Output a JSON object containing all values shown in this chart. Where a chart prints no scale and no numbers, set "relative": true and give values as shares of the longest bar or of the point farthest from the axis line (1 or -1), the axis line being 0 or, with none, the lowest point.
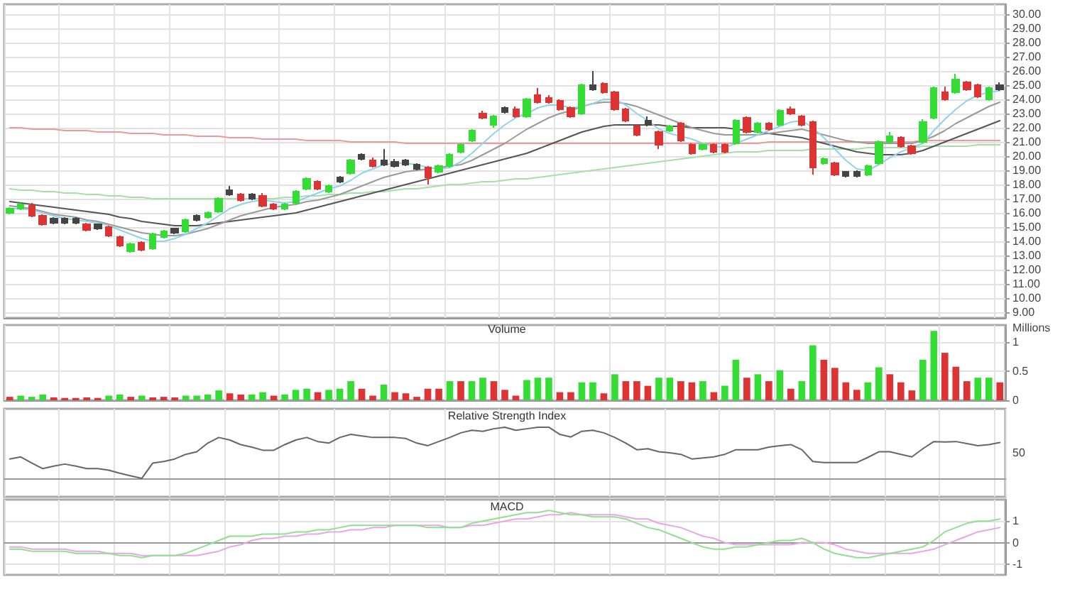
{
  "chart_data": [
    {
      "type": "candlestick",
      "categories": [
        null,
        null,
        null,
        null,
        null,
        null,
        null,
        null,
        null,
        null,
        null,
        null,
        null,
        null,
        null,
        null,
        null,
        null,
        null,
        null,
        null,
        null,
        null,
        null,
        null,
        null,
        null,
        null,
        null,
        null,
        null,
        null,
        null,
        null,
        null,
        null,
        null,
        null,
        null,
        null,
        null,
        null,
        null,
        null,
        null,
        null,
        null,
        null,
        null,
        null,
        null,
        null,
        null,
        null,
        null,
        null,
        null,
        null,
        null,
        null,
        null,
        null,
        null,
        null,
        null,
        null,
        null,
        null,
        null,
        null,
        null,
        null,
        null,
        null,
        null,
        null,
        null,
        null,
        null,
        null,
        null,
        null,
        null,
        null,
        null,
        null,
        null,
        null,
        null,
        null,
        null
      ],
      "ohlc": [
        [
          16.0,
          16.4,
          15.9,
          16.3
        ],
        [
          16.3,
          16.7,
          16.2,
          16.6
        ],
        [
          16.5,
          16.7,
          15.7,
          15.8
        ],
        [
          15.8,
          15.9,
          15.1,
          15.2
        ],
        [
          15.6,
          15.7,
          15.2,
          15.3
        ],
        [
          15.3,
          15.7,
          15.2,
          15.6
        ],
        [
          15.6,
          15.7,
          15.2,
          15.3
        ],
        [
          15.2,
          15.3,
          14.7,
          14.8
        ],
        [
          14.9,
          15.2,
          14.8,
          15.2
        ],
        [
          15.0,
          15.1,
          14.3,
          14.4
        ],
        [
          14.3,
          14.4,
          13.6,
          13.7
        ],
        [
          13.3,
          13.9,
          13.2,
          13.8
        ],
        [
          13.9,
          14.0,
          13.3,
          13.4
        ],
        [
          13.5,
          14.6,
          13.4,
          14.5
        ],
        [
          14.3,
          14.8,
          14.2,
          14.7
        ],
        [
          14.6,
          14.9,
          14.5,
          14.9
        ],
        [
          14.7,
          15.6,
          14.6,
          15.5
        ],
        [
          15.5,
          15.9,
          15.4,
          15.8
        ],
        [
          15.7,
          16.1,
          15.6,
          16.0
        ],
        [
          16.1,
          17.1,
          16.0,
          17.0
        ],
        [
          17.3,
          17.9,
          17.2,
          17.6
        ],
        [
          17.3,
          17.4,
          16.8,
          16.9
        ],
        [
          17.0,
          17.4,
          16.9,
          17.3
        ],
        [
          17.2,
          17.4,
          16.4,
          16.5
        ],
        [
          16.6,
          16.7,
          16.2,
          16.3
        ],
        [
          16.3,
          16.7,
          16.2,
          16.6
        ],
        [
          16.7,
          17.6,
          16.6,
          17.5
        ],
        [
          17.7,
          18.5,
          17.6,
          18.4
        ],
        [
          18.2,
          18.3,
          17.6,
          17.7
        ],
        [
          17.5,
          18.0,
          17.4,
          17.9
        ],
        [
          18.2,
          18.6,
          18.1,
          18.5
        ],
        [
          18.8,
          19.8,
          18.7,
          19.7
        ],
        [
          19.8,
          20.2,
          19.7,
          20.1
        ],
        [
          19.7,
          19.9,
          19.2,
          19.3
        ],
        [
          19.4,
          20.5,
          19.3,
          19.7
        ],
        [
          19.6,
          19.8,
          19.2,
          19.3
        ],
        [
          19.4,
          19.8,
          19.3,
          19.7
        ],
        [
          19.4,
          19.5,
          19.0,
          19.1
        ],
        [
          19.2,
          19.3,
          18.0,
          18.5
        ],
        [
          18.9,
          19.4,
          18.8,
          19.3
        ],
        [
          19.3,
          20.2,
          19.2,
          20.1
        ],
        [
          20.3,
          20.9,
          20.2,
          20.8
        ],
        [
          21.1,
          21.9,
          21.0,
          21.8
        ],
        [
          23.0,
          23.2,
          22.6,
          22.7
        ],
        [
          22.2,
          22.9,
          22.0,
          22.8
        ],
        [
          23.1,
          23.5,
          23.0,
          23.4
        ],
        [
          23.3,
          23.5,
          22.7,
          22.8
        ],
        [
          22.8,
          24.1,
          22.7,
          24.0
        ],
        [
          24.3,
          24.8,
          23.7,
          23.8
        ],
        [
          24.1,
          24.3,
          23.7,
          23.8
        ],
        [
          23.9,
          24.0,
          23.2,
          23.3
        ],
        [
          23.4,
          23.5,
          22.7,
          22.8
        ],
        [
          23.0,
          25.1,
          22.9,
          25.0
        ],
        [
          24.7,
          26.0,
          24.6,
          25.0
        ],
        [
          25.1,
          25.2,
          24.4,
          24.5
        ],
        [
          24.5,
          24.6,
          23.2,
          23.3
        ],
        [
          23.3,
          23.4,
          22.4,
          22.5
        ],
        [
          22.1,
          22.2,
          21.4,
          21.5
        ],
        [
          22.2,
          22.8,
          22.1,
          22.5
        ],
        [
          21.7,
          21.8,
          20.5,
          20.8
        ],
        [
          21.8,
          22.2,
          21.7,
          22.1
        ],
        [
          22.3,
          22.4,
          21.0,
          21.1
        ],
        [
          20.8,
          20.9,
          20.1,
          20.2
        ],
        [
          20.5,
          20.9,
          20.4,
          20.8
        ],
        [
          20.8,
          20.9,
          20.2,
          20.3
        ],
        [
          20.8,
          20.9,
          20.2,
          20.3
        ],
        [
          20.9,
          22.6,
          20.8,
          22.5
        ],
        [
          22.7,
          22.8,
          21.6,
          21.7
        ],
        [
          21.7,
          22.4,
          21.6,
          22.3
        ],
        [
          22.3,
          22.4,
          21.8,
          21.9
        ],
        [
          22.2,
          23.3,
          22.1,
          23.2
        ],
        [
          23.3,
          23.5,
          22.9,
          23.0
        ],
        [
          22.8,
          22.9,
          22.1,
          22.2
        ],
        [
          22.4,
          22.5,
          18.7,
          19.2
        ],
        [
          19.5,
          19.9,
          19.4,
          19.8
        ],
        [
          19.5,
          19.6,
          18.6,
          18.7
        ],
        [
          18.6,
          18.9,
          18.5,
          18.9
        ],
        [
          18.9,
          19.0,
          18.5,
          18.6
        ],
        [
          18.7,
          19.4,
          18.6,
          19.3
        ],
        [
          19.5,
          21.1,
          19.4,
          21.0
        ],
        [
          21.0,
          21.7,
          20.9,
          21.4
        ],
        [
          21.3,
          21.4,
          20.6,
          20.7
        ],
        [
          20.7,
          20.8,
          20.1,
          20.2
        ],
        [
          21.0,
          22.6,
          20.9,
          22.4
        ],
        [
          22.7,
          24.9,
          22.6,
          24.8
        ],
        [
          24.5,
          24.9,
          23.9,
          24.0
        ],
        [
          24.5,
          25.8,
          24.4,
          25.4
        ],
        [
          25.2,
          25.3,
          24.6,
          24.7
        ],
        [
          25.0,
          25.1,
          24.1,
          24.2
        ],
        [
          24.0,
          24.9,
          23.9,
          24.8
        ],
        [
          24.7,
          25.2,
          24.6,
          25.0
        ]
      ],
      "colors": [
        "#33dd33",
        "#33dd33",
        "#dd3333",
        "#dd3333",
        "#444444",
        "#444444",
        "#444444",
        "#dd3333",
        "#444444",
        "#dd3333",
        "#dd3333",
        "#33dd33",
        "#dd3333",
        "#33dd33",
        "#33dd33",
        "#444444",
        "#33dd33",
        "#444444",
        "#33dd33",
        "#33dd33",
        "#444444",
        "#dd3333",
        "#444444",
        "#dd3333",
        "#dd3333",
        "#33dd33",
        "#33dd33",
        "#33dd33",
        "#dd3333",
        "#33dd33",
        "#444444",
        "#33dd33",
        "#444444",
        "#dd3333",
        "#444444",
        "#444444",
        "#444444",
        "#444444",
        "#dd3333",
        "#33dd33",
        "#33dd33",
        "#33dd33",
        "#33dd33",
        "#dd3333",
        "#33dd33",
        "#444444",
        "#dd3333",
        "#33dd33",
        "#dd3333",
        "#dd3333",
        "#dd3333",
        "#dd3333",
        "#33dd33",
        "#444444",
        "#dd3333",
        "#dd3333",
        "#dd3333",
        "#dd3333",
        "#444444",
        "#dd3333",
        "#33dd33",
        "#dd3333",
        "#dd3333",
        "#33dd33",
        "#dd3333",
        "#dd3333",
        "#33dd33",
        "#dd3333",
        "#33dd33",
        "#dd3333",
        "#33dd33",
        "#dd3333",
        "#dd3333",
        "#dd3333",
        "#33dd33",
        "#dd3333",
        "#444444",
        "#444444",
        "#33dd33",
        "#33dd33",
        "#33dd33",
        "#dd3333",
        "#dd3333",
        "#33dd33",
        "#33dd33",
        "#dd3333",
        "#33dd33",
        "#dd3333",
        "#dd3333",
        "#33dd33",
        "#444444"
      ],
      "series": [
        {
          "type": "line",
          "color": "#ee9a9a",
          "values": [
            22.0,
            22.0,
            21.9,
            21.9,
            21.9,
            21.8,
            21.8,
            21.8,
            21.7,
            21.7,
            21.7,
            21.6,
            21.6,
            21.6,
            21.5,
            21.5,
            21.5,
            21.4,
            21.4,
            21.4,
            21.3,
            21.3,
            21.3,
            21.2,
            21.2,
            21.2,
            21.2,
            21.1,
            21.1,
            21.1,
            21.1,
            21.0,
            21.0,
            21.0,
            21.0,
            21.0,
            20.9,
            20.9,
            20.9,
            20.9,
            20.9,
            20.9,
            20.9,
            20.9,
            20.9,
            20.9,
            20.9,
            20.9,
            20.9,
            20.9,
            20.9,
            20.9,
            20.9,
            20.9,
            20.9,
            20.9,
            20.9,
            20.9,
            20.9,
            20.9,
            20.9,
            20.9,
            20.9,
            20.9,
            20.9,
            20.9,
            20.9,
            20.9,
            20.9,
            21.0,
            21.0,
            21.0,
            21.0,
            21.0,
            21.0,
            21.0,
            21.0,
            21.0,
            21.0,
            21.0,
            21.0,
            21.0,
            21.0,
            21.1,
            21.1,
            21.1,
            21.1,
            21.1,
            21.1,
            21.1,
            21.1
          ]
        },
        {
          "type": "line",
          "color": "#a6e0a6",
          "values": [
            17.7,
            17.6,
            17.6,
            17.5,
            17.5,
            17.4,
            17.4,
            17.3,
            17.3,
            17.2,
            17.2,
            17.1,
            17.1,
            17.0,
            17.0,
            17.0,
            17.0,
            17.0,
            17.0,
            17.0,
            17.0,
            17.0,
            17.0,
            17.0,
            17.0,
            17.1,
            17.1,
            17.2,
            17.2,
            17.3,
            17.3,
            17.4,
            17.4,
            17.5,
            17.5,
            17.6,
            17.7,
            17.7,
            17.8,
            17.9,
            18.0,
            18.0,
            18.1,
            18.2,
            18.2,
            18.3,
            18.4,
            18.4,
            18.5,
            18.6,
            18.7,
            18.8,
            18.9,
            19.0,
            19.1,
            19.2,
            19.3,
            19.4,
            19.5,
            19.6,
            19.7,
            19.8,
            19.9,
            20.0,
            20.1,
            20.2,
            20.3,
            20.3,
            20.3,
            20.4,
            20.4,
            20.4,
            20.4,
            20.5,
            20.5,
            20.5,
            20.5,
            20.5,
            20.6,
            20.6,
            20.6,
            20.6,
            20.6,
            20.7,
            20.7,
            20.7,
            20.7,
            20.7,
            20.8,
            20.8,
            20.8
          ]
        },
        {
          "type": "line",
          "color": "#555555",
          "values": [
            16.8,
            16.7,
            16.6,
            16.5,
            16.4,
            16.3,
            16.2,
            16.1,
            16.0,
            15.9,
            15.7,
            15.6,
            15.4,
            15.3,
            15.2,
            15.1,
            15.1,
            15.1,
            15.2,
            15.3,
            15.4,
            15.5,
            15.6,
            15.7,
            15.8,
            15.9,
            16.0,
            16.2,
            16.4,
            16.6,
            16.8,
            17.0,
            17.2,
            17.4,
            17.6,
            17.8,
            18.0,
            18.2,
            18.4,
            18.6,
            18.8,
            19.0,
            19.2,
            19.4,
            19.6,
            19.8,
            20.0,
            20.2,
            20.5,
            20.8,
            21.1,
            21.4,
            21.7,
            21.9,
            22.1,
            22.2,
            22.2,
            22.2,
            22.2,
            22.2,
            22.1,
            22.1,
            22.0,
            22.0,
            22.0,
            22.0,
            21.9,
            21.8,
            21.7,
            21.6,
            21.5,
            21.4,
            21.3,
            21.1,
            20.9,
            20.7,
            20.5,
            20.3,
            20.2,
            20.1,
            20.1,
            20.1,
            20.2,
            20.4,
            20.7,
            21.0,
            21.3,
            21.6,
            21.9,
            22.2,
            22.5
          ]
        },
        {
          "type": "line",
          "color": "#9a9a9a",
          "values": [
            16.5,
            16.4,
            16.3,
            16.1,
            15.9,
            15.8,
            15.7,
            15.5,
            15.4,
            15.2,
            15.0,
            14.8,
            14.6,
            14.5,
            14.4,
            14.4,
            14.5,
            14.7,
            14.9,
            15.2,
            15.5,
            15.8,
            16.0,
            16.2,
            16.4,
            16.5,
            16.6,
            16.8,
            16.9,
            17.1,
            17.3,
            17.6,
            17.9,
            18.2,
            18.5,
            18.7,
            18.9,
            19.0,
            19.1,
            19.2,
            19.3,
            19.4,
            19.7,
            20.1,
            20.5,
            20.9,
            21.4,
            21.9,
            22.3,
            22.7,
            23.0,
            23.2,
            23.5,
            23.7,
            23.8,
            23.8,
            23.7,
            23.5,
            23.2,
            22.9,
            22.6,
            22.3,
            22.0,
            21.8,
            21.6,
            21.5,
            21.5,
            21.5,
            21.5,
            21.6,
            21.7,
            21.8,
            21.9,
            21.7,
            21.5,
            21.3,
            21.1,
            21.0,
            20.9,
            20.9,
            20.9,
            20.9,
            20.9,
            21.1,
            21.4,
            21.8,
            22.3,
            22.7,
            23.1,
            23.5,
            23.8
          ]
        },
        {
          "type": "line",
          "color": "#8fd3ea",
          "values": [
            16.3,
            16.3,
            16.2,
            16.0,
            15.8,
            15.6,
            15.5,
            15.4,
            15.3,
            15.1,
            14.8,
            14.5,
            14.2,
            14.0,
            14.0,
            14.2,
            14.5,
            14.9,
            15.3,
            15.8,
            16.3,
            16.6,
            16.8,
            16.9,
            16.8,
            16.7,
            16.8,
            17.1,
            17.4,
            17.7,
            17.9,
            18.3,
            18.8,
            19.1,
            19.4,
            19.5,
            19.5,
            19.4,
            19.2,
            19.1,
            19.2,
            19.6,
            20.2,
            20.9,
            21.6,
            22.2,
            22.7,
            23.0,
            23.4,
            23.6,
            23.6,
            23.4,
            23.5,
            23.7,
            24.0,
            24.0,
            23.6,
            23.0,
            22.5,
            21.9,
            21.6,
            21.4,
            21.2,
            20.9,
            20.7,
            20.6,
            20.9,
            21.2,
            21.5,
            21.8,
            22.1,
            22.4,
            22.5,
            22.0,
            21.3,
            20.5,
            19.7,
            19.1,
            19.0,
            19.4,
            19.9,
            20.3,
            20.6,
            20.9,
            21.8,
            22.6,
            23.3,
            23.9,
            24.3,
            24.5,
            24.6
          ]
        }
      ],
      "ylim": [
        8.6,
        30.7
      ],
      "yticks": [
        {
          "value": 9,
          "label": "9.00"
        },
        {
          "value": 10,
          "label": "10.00"
        },
        {
          "value": 11,
          "label": "11.00"
        },
        {
          "value": 12,
          "label": "12.00"
        },
        {
          "value": 13,
          "label": "13.00"
        },
        {
          "value": 14,
          "label": "14.00"
        },
        {
          "value": 15,
          "label": "15.00"
        },
        {
          "value": 16,
          "label": "16.00"
        },
        {
          "value": 17,
          "label": "17.00"
        },
        {
          "value": 18,
          "label": "18.00"
        },
        {
          "value": 19,
          "label": "19.00"
        },
        {
          "value": 20,
          "label": "20.00"
        },
        {
          "value": 21,
          "label": "21.00"
        },
        {
          "value": 22,
          "label": "22.00"
        },
        {
          "value": 23,
          "label": "23.00"
        },
        {
          "value": 24,
          "label": "24.00"
        },
        {
          "value": 25,
          "label": "25.00"
        },
        {
          "value": 26,
          "label": "26.00"
        },
        {
          "value": 27,
          "label": "27.00"
        },
        {
          "value": 28,
          "label": "28.00"
        },
        {
          "value": 29,
          "label": "29.00"
        },
        {
          "value": 30,
          "label": "30.00"
        }
      ],
      "grid": true,
      "marker": "none",
      "tick_labels": "y"
    },
    {
      "type": "bar",
      "title": "Volume",
      "ylabel": "Millions",
      "categories": [
        null,
        null,
        null,
        null,
        null,
        null,
        null,
        null,
        null,
        null,
        null,
        null,
        null,
        null,
        null,
        null,
        null,
        null,
        null,
        null,
        null,
        null,
        null,
        null,
        null,
        null,
        null,
        null,
        null,
        null,
        null,
        null,
        null,
        null,
        null,
        null,
        null,
        null,
        null,
        null,
        null,
        null,
        null,
        null,
        null,
        null,
        null,
        null,
        null,
        null,
        null,
        null,
        null,
        null,
        null,
        null,
        null,
        null,
        null,
        null,
        null,
        null,
        null,
        null,
        null,
        null,
        null,
        null,
        null,
        null,
        null,
        null,
        null,
        null,
        null,
        null,
        null,
        null,
        null,
        null,
        null,
        null,
        null,
        null,
        null,
        null,
        null,
        null,
        null,
        null,
        null
      ],
      "values": [
        0.06,
        0.08,
        0.06,
        0.1,
        0.05,
        0.04,
        0.04,
        0.05,
        0.04,
        0.08,
        0.1,
        0.06,
        0.08,
        0.05,
        0.06,
        0.05,
        0.08,
        0.08,
        0.1,
        0.17,
        0.12,
        0.1,
        0.1,
        0.14,
        0.08,
        0.1,
        0.18,
        0.2,
        0.14,
        0.18,
        0.2,
        0.33,
        0.2,
        0.08,
        0.27,
        0.14,
        0.12,
        0.06,
        0.2,
        0.2,
        0.33,
        0.33,
        0.33,
        0.39,
        0.33,
        0.18,
        0.08,
        0.35,
        0.39,
        0.39,
        0.14,
        0.14,
        0.31,
        0.31,
        0.12,
        0.45,
        0.33,
        0.33,
        0.25,
        0.39,
        0.39,
        0.33,
        0.31,
        0.33,
        0.14,
        0.25,
        0.7,
        0.39,
        0.45,
        0.33,
        0.52,
        0.2,
        0.33,
        0.95,
        0.7,
        0.56,
        0.31,
        0.18,
        0.31,
        0.57,
        0.45,
        0.31,
        0.17,
        0.7,
        1.2,
        0.82,
        0.58,
        0.33,
        0.39,
        0.39,
        0.31
      ],
      "colors": [
        "#dd3333",
        "#33dd33",
        "#33dd33",
        "#33dd33",
        "#dd3333",
        "#dd3333",
        "#dd3333",
        "#dd3333",
        "#dd3333",
        "#33dd33",
        "#33dd33",
        "#dd3333",
        "#33dd33",
        "#dd3333",
        "#dd3333",
        "#dd3333",
        "#33dd33",
        "#33dd33",
        "#33dd33",
        "#33dd33",
        "#dd3333",
        "#dd3333",
        "#33dd33",
        "#33dd33",
        "#dd3333",
        "#33dd33",
        "#33dd33",
        "#33dd33",
        "#dd3333",
        "#33dd33",
        "#33dd33",
        "#33dd33",
        "#dd3333",
        "#dd3333",
        "#33dd33",
        "#dd3333",
        "#dd3333",
        "#dd3333",
        "#dd3333",
        "#dd3333",
        "#33dd33",
        "#dd3333",
        "#33dd33",
        "#33dd33",
        "#dd3333",
        "#dd3333",
        "#dd3333",
        "#33dd33",
        "#33dd33",
        "#33dd33",
        "#dd3333",
        "#dd3333",
        "#33dd33",
        "#33dd33",
        "#dd3333",
        "#33dd33",
        "#dd3333",
        "#dd3333",
        "#dd3333",
        "#33dd33",
        "#33dd33",
        "#dd3333",
        "#dd3333",
        "#33dd33",
        "#dd3333",
        "#33dd33",
        "#33dd33",
        "#dd3333",
        "#33dd33",
        "#dd3333",
        "#33dd33",
        "#dd3333",
        "#33dd33",
        "#33dd33",
        "#dd3333",
        "#dd3333",
        "#dd3333",
        "#dd3333",
        "#33dd33",
        "#33dd33",
        "#dd3333",
        "#dd3333",
        "#dd3333",
        "#33dd33",
        "#33dd33",
        "#dd3333",
        "#dd3333",
        "#dd3333",
        "#33dd33",
        "#33dd33",
        "#dd3333"
      ],
      "ylim": [
        0,
        1.3
      ],
      "yticks": [
        0,
        0.5,
        1
      ],
      "grid": true,
      "tick_labels": "y"
    },
    {
      "type": "line",
      "title": "Relative Strength Index",
      "relative": true,
      "annotations": [
        "50"
      ],
      "categories": [
        null,
        null,
        null,
        null,
        null,
        null,
        null,
        null,
        null,
        null,
        null,
        null,
        null,
        null,
        null,
        null,
        null,
        null,
        null,
        null,
        null,
        null,
        null,
        null,
        null,
        null,
        null,
        null,
        null,
        null,
        null,
        null,
        null,
        null,
        null,
        null,
        null,
        null,
        null,
        null,
        null,
        null,
        null,
        null,
        null,
        null,
        null,
        null,
        null,
        null,
        null,
        null,
        null,
        null,
        null,
        null,
        null,
        null,
        null,
        null,
        null,
        null,
        null,
        null,
        null,
        null,
        null,
        null,
        null,
        null,
        null,
        null,
        null,
        null,
        null,
        null,
        null,
        null,
        null,
        null,
        null,
        null,
        null,
        null,
        null,
        null,
        null,
        null,
        null,
        null,
        null
      ],
      "series": [
        {
          "color": "#666666",
          "values": [
            0.38,
            0.42,
            0.3,
            0.19,
            0.24,
            0.28,
            0.24,
            0.19,
            0.19,
            0.16,
            0.1,
            0.05,
            0,
            0.3,
            0.33,
            0.38,
            0.47,
            0.52,
            0.69,
            0.8,
            0.75,
            0.66,
            0.61,
            0.55,
            0.55,
            0.66,
            0.75,
            0.8,
            0.72,
            0.69,
            0.8,
            0.86,
            0.83,
            0.8,
            0.8,
            0.8,
            0.78,
            0.69,
            0.64,
            0.72,
            0.8,
            0.89,
            0.94,
            0.92,
            0.97,
            1,
            0.94,
            0.97,
            1,
            1,
            0.86,
            0.81,
            0.92,
            0.94,
            0.89,
            0.8,
            0.69,
            0.56,
            0.58,
            0.52,
            0.5,
            0.47,
            0.38,
            0.4,
            0.42,
            0.47,
            0.56,
            0.56,
            0.56,
            0.61,
            0.64,
            0.66,
            0.56,
            0.33,
            0.31,
            0.31,
            0.31,
            0.31,
            0.41,
            0.52,
            0.52,
            0.47,
            0.42,
            0.58,
            0.72,
            0.71,
            0.72,
            0.68,
            0.64,
            0.66,
            0.7
          ]
        }
      ],
      "grid": "x",
      "marker": "none",
      "tick_labels": false
    },
    {
      "type": "line",
      "title": "MACD",
      "categories": [
        null,
        null,
        null,
        null,
        null,
        null,
        null,
        null,
        null,
        null,
        null,
        null,
        null,
        null,
        null,
        null,
        null,
        null,
        null,
        null,
        null,
        null,
        null,
        null,
        null,
        null,
        null,
        null,
        null,
        null,
        null,
        null,
        null,
        null,
        null,
        null,
        null,
        null,
        null,
        null,
        null,
        null,
        null,
        null,
        null,
        null,
        null,
        null,
        null,
        null,
        null,
        null,
        null,
        null,
        null,
        null,
        null,
        null,
        null,
        null,
        null,
        null,
        null,
        null,
        null,
        null,
        null,
        null,
        null,
        null,
        null,
        null,
        null,
        null,
        null,
        null,
        null,
        null,
        null,
        null,
        null,
        null,
        null,
        null,
        null,
        null,
        null,
        null,
        null,
        null,
        null
      ],
      "series": [
        {
          "color": "#e8a6e8",
          "values": [
            -0.2,
            -0.2,
            -0.3,
            -0.3,
            -0.3,
            -0.3,
            -0.4,
            -0.4,
            -0.4,
            -0.5,
            -0.5,
            -0.5,
            -0.6,
            -0.6,
            -0.6,
            -0.6,
            -0.6,
            -0.6,
            -0.5,
            -0.4,
            -0.2,
            -0.1,
            0.1,
            0.2,
            0.2,
            0.3,
            0.3,
            0.4,
            0.4,
            0.5,
            0.5,
            0.6,
            0.6,
            0.7,
            0.7,
            0.8,
            0.8,
            0.8,
            0.8,
            0.8,
            0.7,
            0.7,
            0.8,
            0.8,
            0.9,
            1.0,
            1.1,
            1.1,
            1.2,
            1.3,
            1.3,
            1.4,
            1.3,
            1.3,
            1.3,
            1.3,
            1.2,
            1.1,
            1.1,
            0.9,
            0.8,
            0.7,
            0.5,
            0.3,
            0.2,
            0,
            -0.1,
            -0.1,
            -0.1,
            -0.1,
            -0.1,
            -0.1,
            0,
            0,
            0,
            -0.1,
            -0.3,
            -0.4,
            -0.5,
            -0.5,
            -0.5,
            -0.5,
            -0.5,
            -0.4,
            -0.3,
            -0.1,
            0.1,
            0.3,
            0.5,
            0.6,
            0.7
          ]
        },
        {
          "color": "#8fe08f",
          "values": [
            -0.3,
            -0.3,
            -0.4,
            -0.4,
            -0.4,
            -0.4,
            -0.5,
            -0.5,
            -0.5,
            -0.5,
            -0.6,
            -0.6,
            -0.7,
            -0.6,
            -0.6,
            -0.6,
            -0.5,
            -0.3,
            -0.1,
            0.1,
            0.3,
            0.3,
            0.3,
            0.4,
            0.4,
            0.4,
            0.5,
            0.5,
            0.6,
            0.6,
            0.7,
            0.8,
            0.8,
            0.8,
            0.8,
            0.8,
            0.8,
            0.8,
            0.7,
            0.7,
            0.7,
            0.7,
            0.9,
            1.0,
            1.1,
            1.2,
            1.3,
            1.4,
            1.4,
            1.5,
            1.4,
            1.3,
            1.3,
            1.2,
            1.2,
            1.2,
            1.1,
            0.9,
            0.7,
            0.6,
            0.4,
            0.2,
            0,
            -0.2,
            -0.3,
            -0.3,
            -0.2,
            -0.2,
            -0.1,
            0,
            0.1,
            0.1,
            0.2,
            0,
            -0.3,
            -0.5,
            -0.6,
            -0.7,
            -0.7,
            -0.6,
            -0.5,
            -0.4,
            -0.3,
            -0.2,
            0.1,
            0.5,
            0.7,
            0.9,
            1.0,
            1.0,
            1.1
          ]
        }
      ],
      "ylim": [
        -1.5,
        2.0
      ],
      "yticks": [
        -1,
        0,
        1
      ],
      "grid": true,
      "marker": "none",
      "tick_labels": "y"
    }
  ]
}
